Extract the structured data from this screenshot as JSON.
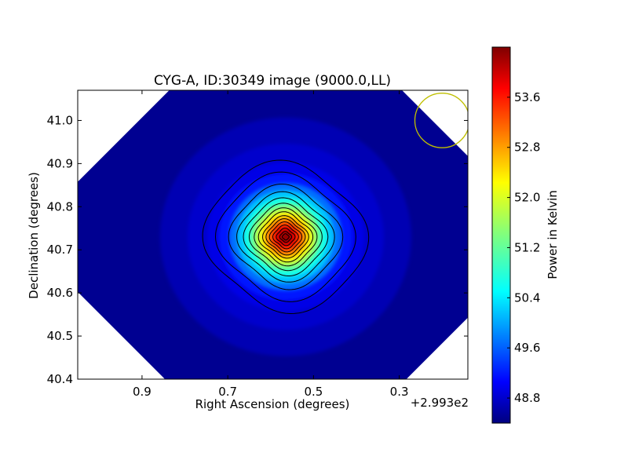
{
  "chart_data": {
    "type": "heatmap",
    "title": "CYG-A, ID:30349 image (9000.0,LL)",
    "xlabel": "Right Ascension (degrees)",
    "ylabel": "Declination (degrees)",
    "x_offset_label": "+2.993e2",
    "xlim": [
      1.05,
      0.14
    ],
    "ylim": [
      40.4,
      41.07
    ],
    "x_ticks": [
      0.9,
      0.7,
      0.5,
      0.3
    ],
    "x_tick_labels": [
      "0.9",
      "0.7",
      "0.5",
      "0.3"
    ],
    "y_ticks": [
      40.4,
      40.5,
      40.6,
      40.7,
      40.8,
      40.9,
      41.0
    ],
    "y_tick_labels": [
      "40.4",
      "40.5",
      "40.6",
      "40.7",
      "40.8",
      "40.9",
      "41.0"
    ],
    "colormap": "jet",
    "colorbar": {
      "label": "Power in Kelvin",
      "range": [
        48.4,
        54.4
      ],
      "ticks": [
        48.8,
        49.6,
        50.4,
        51.2,
        52.0,
        52.8,
        53.6
      ],
      "tick_labels": [
        "48.8",
        "49.6",
        "50.4",
        "51.2",
        "52.0",
        "52.8",
        "53.6"
      ]
    },
    "source_peak": {
      "ra_offset": 0.565,
      "dec": 40.73,
      "value": 54.2
    },
    "background_value": 48.5,
    "contour_levels": 15,
    "beam": {
      "ra_offset": 0.2,
      "dec": 41.0,
      "radius_deg": 0.055,
      "color": "#bfbf00"
    }
  }
}
